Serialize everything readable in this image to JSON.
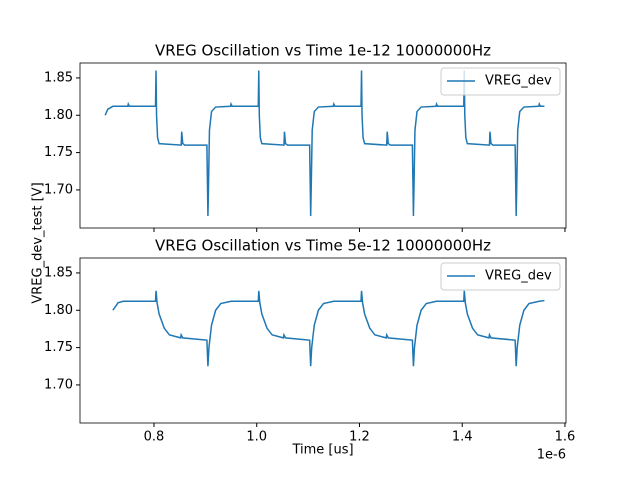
{
  "chart_data": [
    {
      "type": "line",
      "title": "VREG Oscillation vs Time 1e-12 10000000Hz",
      "ylabel": "VREG_dev_test [V]",
      "xlim": [
        0.656,
        1.602
      ],
      "ylim": [
        1.649,
        1.87
      ],
      "xticks": [
        0.8,
        1,
        1.2,
        1.4,
        1.6
      ],
      "xticklabels": false,
      "yticks": [
        1.85,
        {
          "value": 1.8,
          "label": "1.80"
        },
        1.75,
        {
          "value": 1.7,
          "label": "1.70"
        }
      ],
      "legend": "upper right",
      "series": [
        {
          "name": "VREG_dev",
          "color": "#1f77b4",
          "x": [
            0.705,
            0.71,
            0.72,
            0.749,
            0.75,
            0.752,
            0.803,
            0.804,
            0.805,
            0.807,
            0.81,
            0.853,
            0.854,
            0.856,
            0.86,
            0.903,
            0.905,
            0.906,
            0.908,
            0.912,
            0.92,
            0.949,
            0.95,
            0.952,
            1.003,
            1.004,
            1.005,
            1.007,
            1.01,
            1.053,
            1.054,
            1.056,
            1.06,
            1.103,
            1.105,
            1.106,
            1.108,
            1.112,
            1.12,
            1.149,
            1.15,
            1.152,
            1.203,
            1.204,
            1.205,
            1.207,
            1.21,
            1.253,
            1.254,
            1.256,
            1.26,
            1.303,
            1.305,
            1.306,
            1.308,
            1.312,
            1.32,
            1.349,
            1.35,
            1.352,
            1.403,
            1.404,
            1.405,
            1.407,
            1.41,
            1.453,
            1.454,
            1.456,
            1.46,
            1.503,
            1.505,
            1.506,
            1.508,
            1.512,
            1.52,
            1.549,
            1.55,
            1.552,
            1.56
          ],
          "values": [
            1.8,
            1.808,
            1.812,
            1.812,
            1.815,
            1.812,
            1.812,
            1.86,
            1.8,
            1.77,
            1.762,
            1.76,
            1.778,
            1.762,
            1.76,
            1.76,
            1.665,
            1.7,
            1.78,
            1.805,
            1.811,
            1.812,
            1.815,
            1.812,
            1.812,
            1.86,
            1.8,
            1.77,
            1.762,
            1.76,
            1.778,
            1.762,
            1.76,
            1.76,
            1.665,
            1.7,
            1.78,
            1.805,
            1.811,
            1.812,
            1.815,
            1.812,
            1.812,
            1.86,
            1.8,
            1.77,
            1.762,
            1.76,
            1.778,
            1.762,
            1.76,
            1.76,
            1.665,
            1.7,
            1.78,
            1.805,
            1.811,
            1.812,
            1.815,
            1.812,
            1.812,
            1.86,
            1.8,
            1.77,
            1.762,
            1.76,
            1.778,
            1.762,
            1.76,
            1.76,
            1.665,
            1.7,
            1.78,
            1.805,
            1.811,
            1.812,
            1.815,
            1.812,
            1.812
          ]
        }
      ]
    },
    {
      "type": "line",
      "title": "VREG Oscillation vs Time 5e-12 10000000Hz",
      "xlabel": "Time [us]",
      "xoffset": "1e-6",
      "xlim": [
        0.656,
        1.602
      ],
      "ylim": [
        1.649,
        1.87
      ],
      "xticks": [
        0.8,
        {
          "value": 1,
          "label": "1.0"
        },
        1.2,
        1.4,
        1.6
      ],
      "yticks": [
        1.85,
        {
          "value": 1.8,
          "label": "1.80"
        },
        1.75,
        {
          "value": 1.7,
          "label": "1.70"
        }
      ],
      "legend": "upper right",
      "series": [
        {
          "name": "VREG_dev",
          "color": "#1f77b4",
          "x": [
            0.72,
            0.73,
            0.74,
            0.803,
            0.804,
            0.806,
            0.81,
            0.82,
            0.83,
            0.852,
            0.853,
            0.856,
            0.903,
            0.905,
            0.907,
            0.912,
            0.92,
            0.93,
            0.95,
            1.003,
            1.004,
            1.006,
            1.01,
            1.02,
            1.03,
            1.052,
            1.053,
            1.056,
            1.103,
            1.105,
            1.107,
            1.112,
            1.12,
            1.13,
            1.15,
            1.203,
            1.204,
            1.206,
            1.21,
            1.22,
            1.23,
            1.252,
            1.253,
            1.256,
            1.303,
            1.305,
            1.307,
            1.312,
            1.32,
            1.33,
            1.35,
            1.403,
            1.404,
            1.406,
            1.41,
            1.42,
            1.43,
            1.452,
            1.453,
            1.456,
            1.503,
            1.505,
            1.507,
            1.512,
            1.52,
            1.53,
            1.55,
            1.56
          ],
          "values": [
            1.8,
            1.81,
            1.812,
            1.812,
            1.826,
            1.81,
            1.795,
            1.776,
            1.767,
            1.763,
            1.767,
            1.763,
            1.76,
            1.725,
            1.75,
            1.78,
            1.8,
            1.809,
            1.812,
            1.812,
            1.826,
            1.81,
            1.795,
            1.776,
            1.767,
            1.763,
            1.767,
            1.763,
            1.76,
            1.725,
            1.75,
            1.78,
            1.8,
            1.809,
            1.812,
            1.812,
            1.826,
            1.81,
            1.795,
            1.776,
            1.767,
            1.763,
            1.767,
            1.763,
            1.76,
            1.725,
            1.75,
            1.78,
            1.8,
            1.809,
            1.812,
            1.812,
            1.826,
            1.81,
            1.795,
            1.776,
            1.767,
            1.763,
            1.767,
            1.763,
            1.76,
            1.725,
            1.75,
            1.78,
            1.8,
            1.809,
            1.812,
            1.813
          ]
        }
      ]
    }
  ]
}
